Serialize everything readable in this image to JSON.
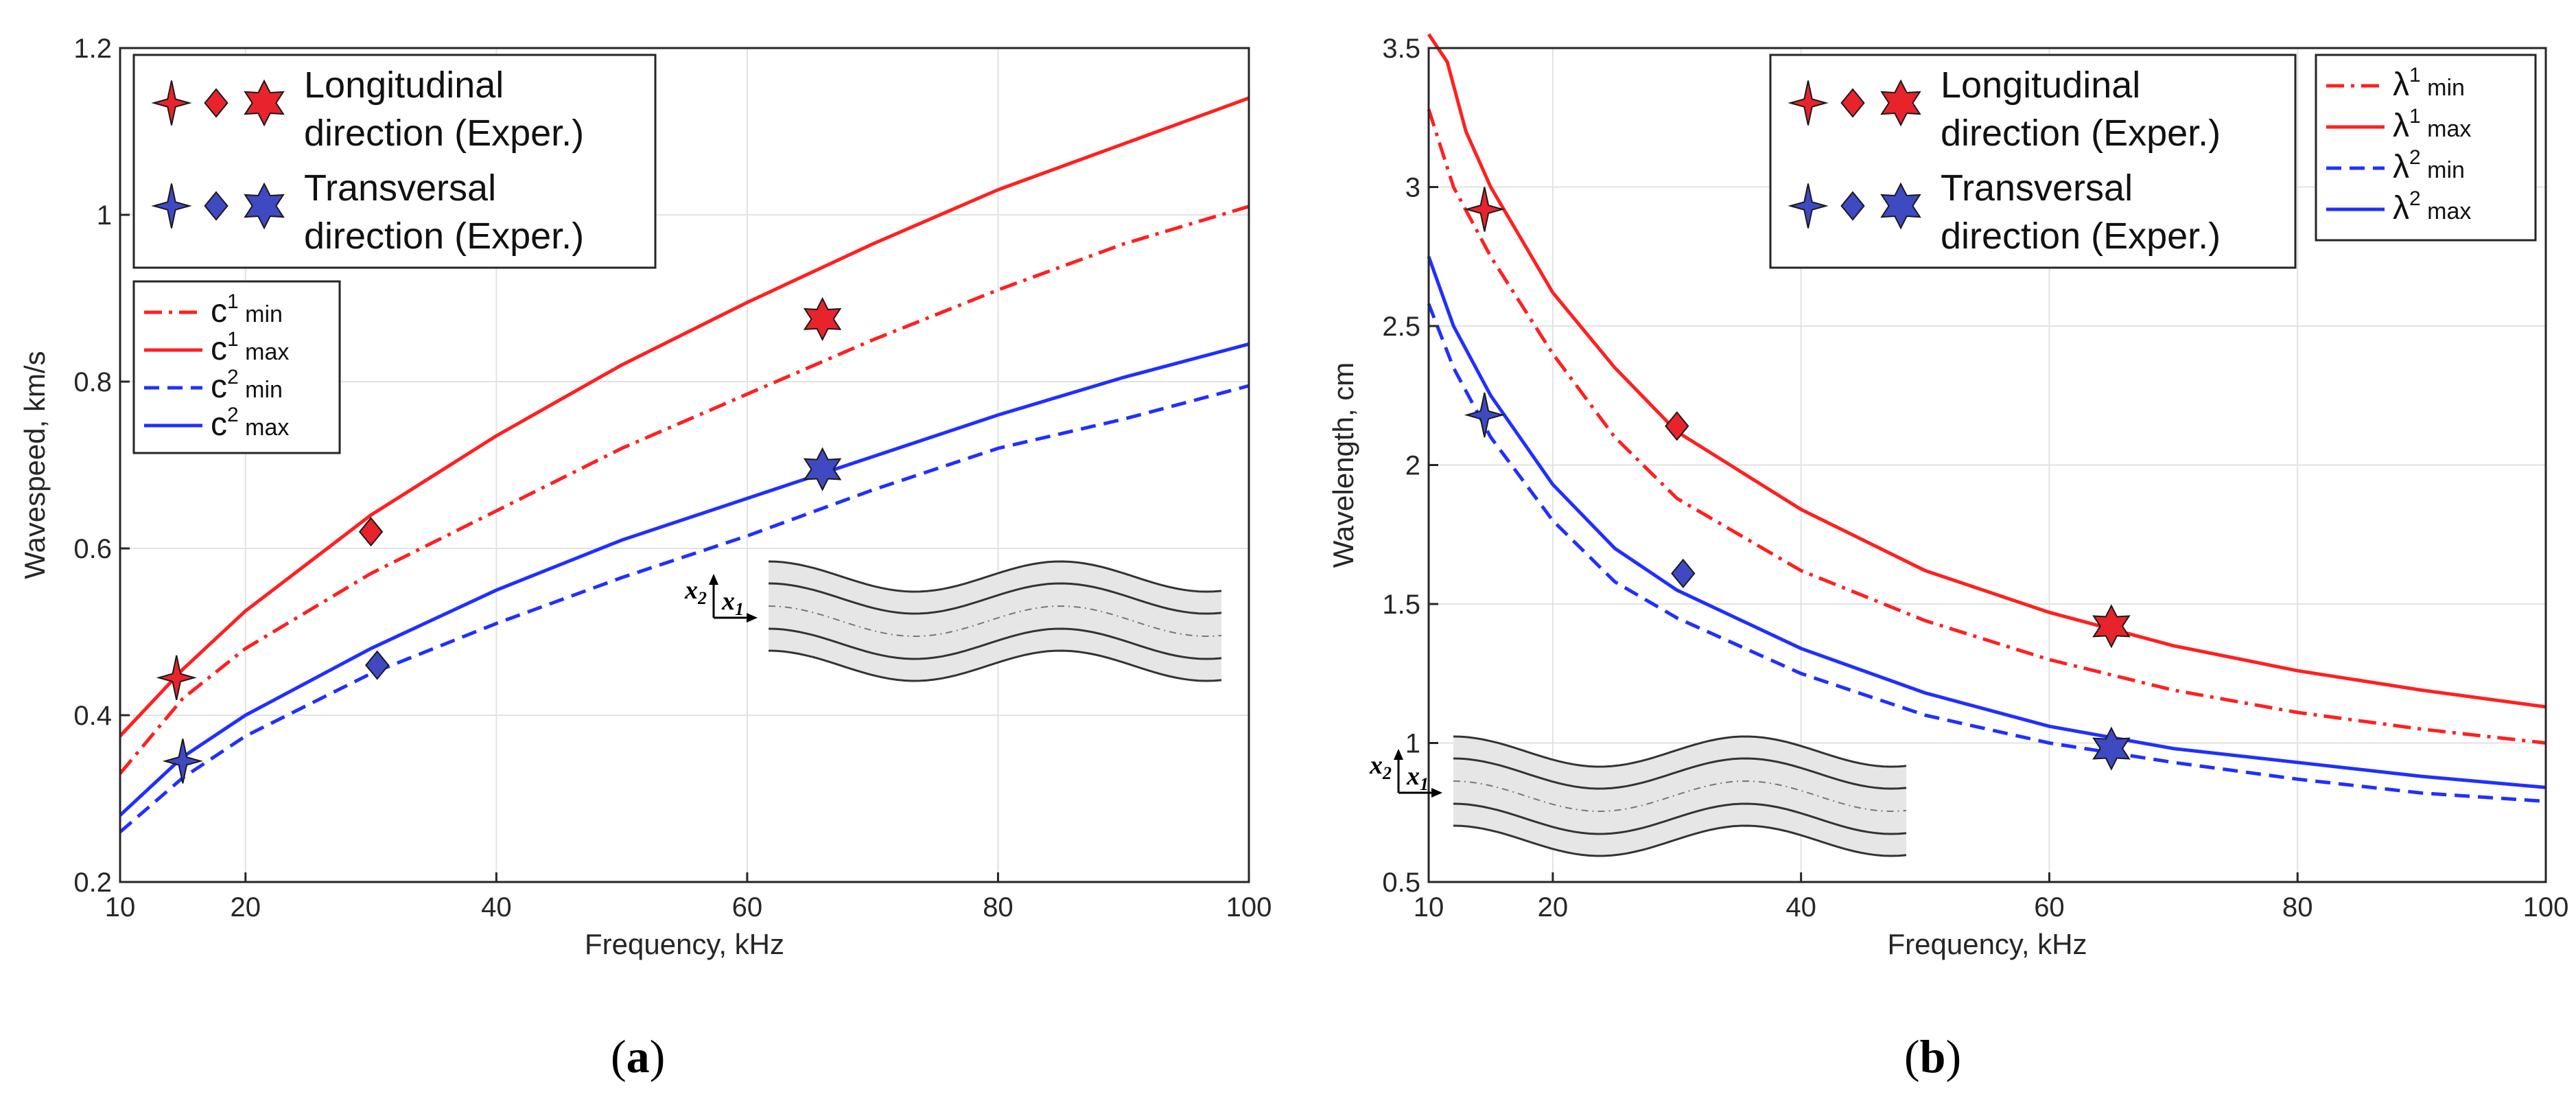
{
  "chart_data": [
    {
      "panel": "a",
      "type": "line",
      "xlabel": "Frequency, kHz",
      "ylabel": "Wavespeed, km/s",
      "xlim": [
        10,
        100
      ],
      "ylim": [
        0.2,
        1.2
      ],
      "xticks": [
        "10",
        "20",
        "40",
        "60",
        "80",
        "100"
      ],
      "yticks": [
        "0.2",
        "0.4",
        "0.6",
        "0.8",
        "1",
        "1.2"
      ],
      "grid": true,
      "series": [
        {
          "label_base": "c",
          "sup": "1",
          "sub": "min",
          "color": "#ff2020",
          "style": "dashdot",
          "x": [
            10,
            15,
            20,
            30,
            40,
            50,
            60,
            70,
            80,
            90,
            100
          ],
          "y": [
            0.33,
            0.42,
            0.48,
            0.57,
            0.645,
            0.72,
            0.785,
            0.85,
            0.91,
            0.965,
            1.01
          ]
        },
        {
          "label_base": "c",
          "sup": "1",
          "sub": "max",
          "color": "#ff2020",
          "style": "solid",
          "x": [
            10,
            15,
            20,
            30,
            40,
            50,
            60,
            70,
            80,
            90,
            100
          ],
          "y": [
            0.375,
            0.455,
            0.525,
            0.64,
            0.735,
            0.82,
            0.895,
            0.965,
            1.03,
            1.085,
            1.14
          ]
        },
        {
          "label_base": "c",
          "sup": "2",
          "sub": "min",
          "color": "#2030ff",
          "style": "dashed",
          "x": [
            10,
            15,
            20,
            30,
            40,
            50,
            60,
            70,
            80,
            90,
            100
          ],
          "y": [
            0.26,
            0.325,
            0.375,
            0.45,
            0.51,
            0.565,
            0.615,
            0.67,
            0.72,
            0.755,
            0.795
          ]
        },
        {
          "label_base": "c",
          "sup": "2",
          "sub": "max",
          "color": "#2030ff",
          "style": "solid",
          "x": [
            10,
            15,
            20,
            30,
            40,
            50,
            60,
            70,
            80,
            90,
            100
          ],
          "y": [
            0.28,
            0.35,
            0.4,
            0.48,
            0.55,
            0.61,
            0.66,
            0.71,
            0.76,
            0.805,
            0.845
          ]
        }
      ],
      "markers": [
        {
          "x": 14.5,
          "y": 0.445,
          "shape": "star4",
          "group": "longitudinal"
        },
        {
          "x": 30.0,
          "y": 0.62,
          "shape": "diamond",
          "group": "longitudinal"
        },
        {
          "x": 66.0,
          "y": 0.875,
          "shape": "hexagram",
          "group": "longitudinal"
        },
        {
          "x": 15.0,
          "y": 0.345,
          "shape": "star4",
          "group": "transversal"
        },
        {
          "x": 30.5,
          "y": 0.46,
          "shape": "diamond",
          "group": "transversal"
        },
        {
          "x": 66.0,
          "y": 0.695,
          "shape": "hexagram",
          "group": "transversal"
        }
      ],
      "legend_groups": [
        {
          "line1": "Longitudinal",
          "line2": "direction (Exper.)",
          "color": "#e8232c"
        },
        {
          "line1": "Transversal",
          "line2": "direction (Exper.)",
          "color": "#3f49c2"
        }
      ],
      "inset": {
        "axis1": "x",
        "axis2": "x",
        "sub1": "1",
        "sub2": "2"
      },
      "panel_label": "a"
    },
    {
      "panel": "b",
      "type": "line",
      "xlabel": "Frequency, kHz",
      "ylabel": "Wavelength, cm",
      "xlim": [
        10,
        100
      ],
      "ylim": [
        0.5,
        3.5
      ],
      "xticks": [
        "10",
        "20",
        "40",
        "60",
        "80",
        "100"
      ],
      "yticks": [
        "0.5",
        "1",
        "1.5",
        "2",
        "2.5",
        "3",
        "3.5"
      ],
      "grid": true,
      "series": [
        {
          "label_base": "λ",
          "sup": "1",
          "sub": "min",
          "color": "#ff2020",
          "style": "dashdot",
          "x": [
            10,
            12,
            15,
            20,
            25,
            30,
            40,
            50,
            60,
            70,
            80,
            90,
            100
          ],
          "y": [
            3.28,
            3.0,
            2.75,
            2.4,
            2.1,
            1.88,
            1.62,
            1.44,
            1.3,
            1.19,
            1.11,
            1.05,
            1.0
          ]
        },
        {
          "label_base": "λ",
          "sup": "1",
          "sub": "max",
          "color": "#ff2020",
          "style": "solid",
          "x": [
            10,
            11.5,
            13,
            15,
            20,
            25,
            30,
            40,
            50,
            60,
            70,
            80,
            90,
            100
          ],
          "y": [
            3.55,
            3.45,
            3.2,
            3.0,
            2.62,
            2.35,
            2.12,
            1.84,
            1.62,
            1.47,
            1.35,
            1.26,
            1.19,
            1.13
          ]
        },
        {
          "label_base": "λ",
          "sup": "2",
          "sub": "min",
          "color": "#2030ff",
          "style": "dashed",
          "x": [
            10,
            12,
            15,
            20,
            25,
            30,
            40,
            50,
            60,
            70,
            80,
            90,
            100
          ],
          "y": [
            2.58,
            2.35,
            2.1,
            1.8,
            1.58,
            1.45,
            1.25,
            1.1,
            1.0,
            0.93,
            0.87,
            0.82,
            0.79
          ]
        },
        {
          "label_base": "λ",
          "sup": "2",
          "sub": "max",
          "color": "#2030ff",
          "style": "solid",
          "x": [
            10,
            12,
            15,
            20,
            25,
            30,
            40,
            50,
            60,
            70,
            80,
            90,
            100
          ],
          "y": [
            2.75,
            2.5,
            2.25,
            1.93,
            1.7,
            1.55,
            1.34,
            1.18,
            1.06,
            0.98,
            0.93,
            0.88,
            0.84
          ]
        }
      ],
      "markers": [
        {
          "x": 14.5,
          "y": 2.92,
          "shape": "star4",
          "group": "longitudinal"
        },
        {
          "x": 30.0,
          "y": 2.14,
          "shape": "diamond",
          "group": "longitudinal"
        },
        {
          "x": 65.0,
          "y": 1.42,
          "shape": "hexagram",
          "group": "longitudinal"
        },
        {
          "x": 14.5,
          "y": 2.18,
          "shape": "star4",
          "group": "transversal"
        },
        {
          "x": 30.5,
          "y": 1.61,
          "shape": "diamond",
          "group": "transversal"
        },
        {
          "x": 65.0,
          "y": 0.98,
          "shape": "hexagram",
          "group": "transversal"
        }
      ],
      "legend_groups": [
        {
          "line1": "Longitudinal",
          "line2": "direction (Exper.)",
          "color": "#e8232c"
        },
        {
          "line1": "Transversal",
          "line2": "direction (Exper.)",
          "color": "#3f49c2"
        }
      ],
      "inset": {
        "axis1": "x",
        "axis2": "x",
        "sub1": "1",
        "sub2": "2"
      },
      "panel_label": "b"
    }
  ]
}
